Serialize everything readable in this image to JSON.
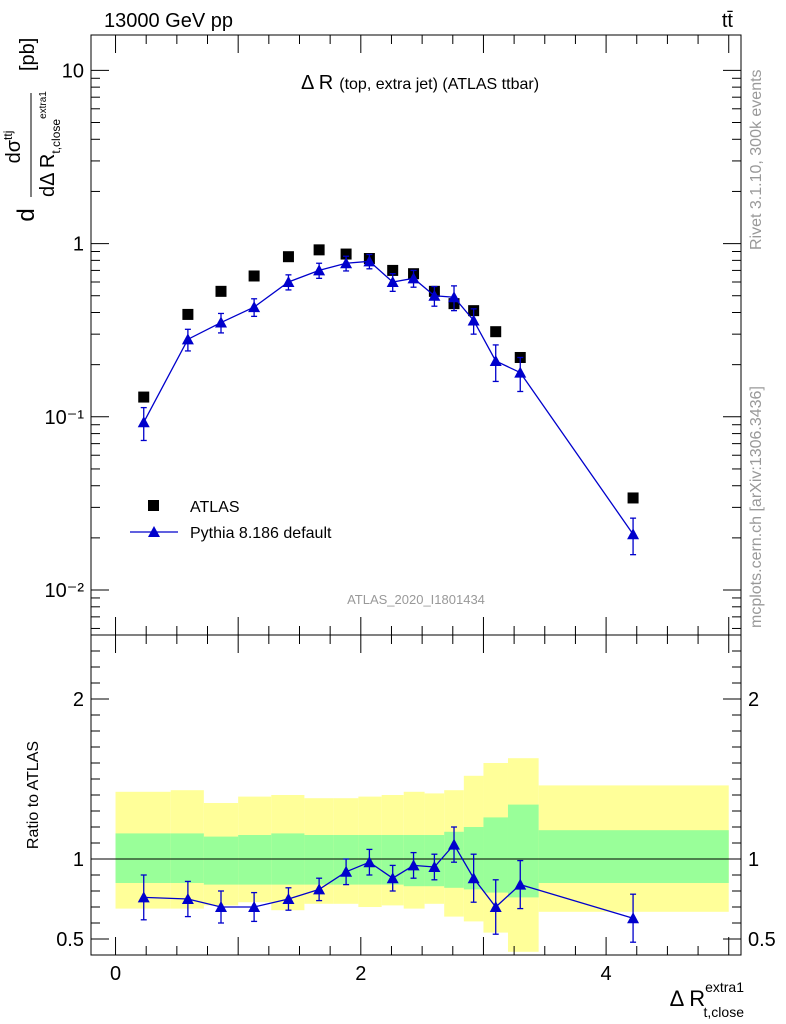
{
  "header": {
    "energy": "13000 GeV pp",
    "process": "tt̄"
  },
  "side_labels": {
    "rivet": "Rivet 3.1.10,  300k events",
    "mcplots": "mcplots.cern.ch [arXiv:1306.3436]"
  },
  "chart_data": [
    {
      "type": "scatter",
      "title": "Δ R (top, extra jet) (ATLAS ttbar)",
      "title_main": "Δ R",
      "title_sub": "(top, extra jet) (ATLAS ttbar)",
      "watermark": "ATLAS_2020_I1801434",
      "ylabel": "dσ^ttj / dΔ R_t,close^extra1 [pb]",
      "yscale": "log",
      "ylim": [
        0.0055,
        16
      ],
      "xlim": [
        -0.2,
        5.1
      ],
      "grid": false,
      "legend_position": "bottom-left",
      "y_ticks": [
        {
          "value": 10,
          "label": "10"
        },
        {
          "value": 1,
          "label": "1"
        },
        {
          "value": 0.1,
          "label": "10⁻¹"
        },
        {
          "value": 0.01,
          "label": "10⁻²"
        }
      ],
      "series": [
        {
          "name": "ATLAS",
          "marker": "square",
          "color": "#000000",
          "x": [
            0.23,
            0.59,
            0.86,
            1.13,
            1.41,
            1.66,
            1.88,
            2.07,
            2.26,
            2.43,
            2.6,
            2.76,
            2.92,
            3.1,
            3.3,
            4.22
          ],
          "y": [
            0.13,
            0.39,
            0.53,
            0.65,
            0.84,
            0.92,
            0.87,
            0.82,
            0.7,
            0.67,
            0.53,
            0.45,
            0.41,
            0.31,
            0.22,
            0.034
          ]
        },
        {
          "name": "Pythia 8.186 default",
          "marker": "triangle",
          "color": "#0000cc",
          "x": [
            0.23,
            0.59,
            0.86,
            1.13,
            1.41,
            1.66,
            1.88,
            2.07,
            2.26,
            2.43,
            2.6,
            2.76,
            2.92,
            3.1,
            3.3,
            4.22
          ],
          "y": [
            0.093,
            0.28,
            0.35,
            0.43,
            0.6,
            0.7,
            0.77,
            0.79,
            0.6,
            0.63,
            0.5,
            0.49,
            0.36,
            0.21,
            0.18,
            0.021
          ],
          "err": [
            0.02,
            0.04,
            0.045,
            0.05,
            0.06,
            0.07,
            0.075,
            0.075,
            0.07,
            0.07,
            0.065,
            0.08,
            0.06,
            0.05,
            0.04,
            0.005
          ]
        }
      ]
    },
    {
      "type": "line",
      "ylabel": "Ratio to ATLAS",
      "xlabel": "Δ R_t,close^extra1",
      "xlabel_main": "Δ R",
      "xlabel_sup": "extra1",
      "xlabel_sub": "t,close",
      "xlim": [
        -0.2,
        5.1
      ],
      "ylim": [
        0.4,
        2.4
      ],
      "reference_line": 1,
      "x_ticks": [
        0,
        2,
        4
      ],
      "y_ticks": [
        0.5,
        1,
        2
      ],
      "band_colors": {
        "inner": "#99ff99",
        "outer": "#ffff99"
      },
      "uncertainty_bands": [
        {
          "x0": 0.0,
          "x1": 0.45,
          "inner": [
            0.85,
            1.16
          ],
          "outer": [
            0.69,
            1.42
          ]
        },
        {
          "x0": 0.45,
          "x1": 0.72,
          "inner": [
            0.85,
            1.16
          ],
          "outer": [
            0.69,
            1.43
          ]
        },
        {
          "x0": 0.72,
          "x1": 1.0,
          "inner": [
            0.84,
            1.14
          ],
          "outer": [
            0.71,
            1.35
          ]
        },
        {
          "x0": 1.0,
          "x1": 1.27,
          "inner": [
            0.84,
            1.15
          ],
          "outer": [
            0.73,
            1.39
          ]
        },
        {
          "x0": 1.27,
          "x1": 1.54,
          "inner": [
            0.84,
            1.16
          ],
          "outer": [
            0.68,
            1.4
          ]
        },
        {
          "x0": 1.54,
          "x1": 1.78,
          "inner": [
            0.84,
            1.15
          ],
          "outer": [
            0.72,
            1.38
          ]
        },
        {
          "x0": 1.78,
          "x1": 1.98,
          "inner": [
            0.84,
            1.15
          ],
          "outer": [
            0.72,
            1.38
          ]
        },
        {
          "x0": 1.98,
          "x1": 2.17,
          "inner": [
            0.84,
            1.15
          ],
          "outer": [
            0.7,
            1.39
          ]
        },
        {
          "x0": 2.17,
          "x1": 2.35,
          "inner": [
            0.84,
            1.15
          ],
          "outer": [
            0.71,
            1.4
          ]
        },
        {
          "x0": 2.35,
          "x1": 2.52,
          "inner": [
            0.83,
            1.15
          ],
          "outer": [
            0.69,
            1.42
          ]
        },
        {
          "x0": 2.52,
          "x1": 2.68,
          "inner": [
            0.83,
            1.15
          ],
          "outer": [
            0.72,
            1.41
          ]
        },
        {
          "x0": 2.68,
          "x1": 2.84,
          "inner": [
            0.82,
            1.17
          ],
          "outer": [
            0.64,
            1.43
          ]
        },
        {
          "x0": 2.84,
          "x1": 3.0,
          "inner": [
            0.81,
            1.2
          ],
          "outer": [
            0.61,
            1.52
          ]
        },
        {
          "x0": 3.0,
          "x1": 3.2,
          "inner": [
            0.79,
            1.26
          ],
          "outer": [
            0.54,
            1.6
          ]
        },
        {
          "x0": 3.2,
          "x1": 3.45,
          "inner": [
            0.76,
            1.34
          ],
          "outer": [
            0.42,
            1.63
          ]
        },
        {
          "x0": 3.45,
          "x1": 5.0,
          "inner": [
            0.85,
            1.18
          ],
          "outer": [
            0.67,
            1.46
          ]
        }
      ],
      "series": [
        {
          "name": "Pythia 8.186 default",
          "color": "#0000cc",
          "x": [
            0.23,
            0.59,
            0.86,
            1.13,
            1.41,
            1.66,
            1.88,
            2.07,
            2.26,
            2.43,
            2.6,
            2.76,
            2.92,
            3.1,
            3.3,
            4.22
          ],
          "y": [
            0.76,
            0.75,
            0.7,
            0.7,
            0.75,
            0.81,
            0.92,
            0.98,
            0.88,
            0.96,
            0.95,
            1.09,
            0.88,
            0.7,
            0.84,
            0.63
          ],
          "err": [
            0.14,
            0.11,
            0.1,
            0.09,
            0.07,
            0.07,
            0.08,
            0.08,
            0.08,
            0.08,
            0.08,
            0.11,
            0.15,
            0.17,
            0.15,
            0.15
          ]
        }
      ]
    }
  ]
}
